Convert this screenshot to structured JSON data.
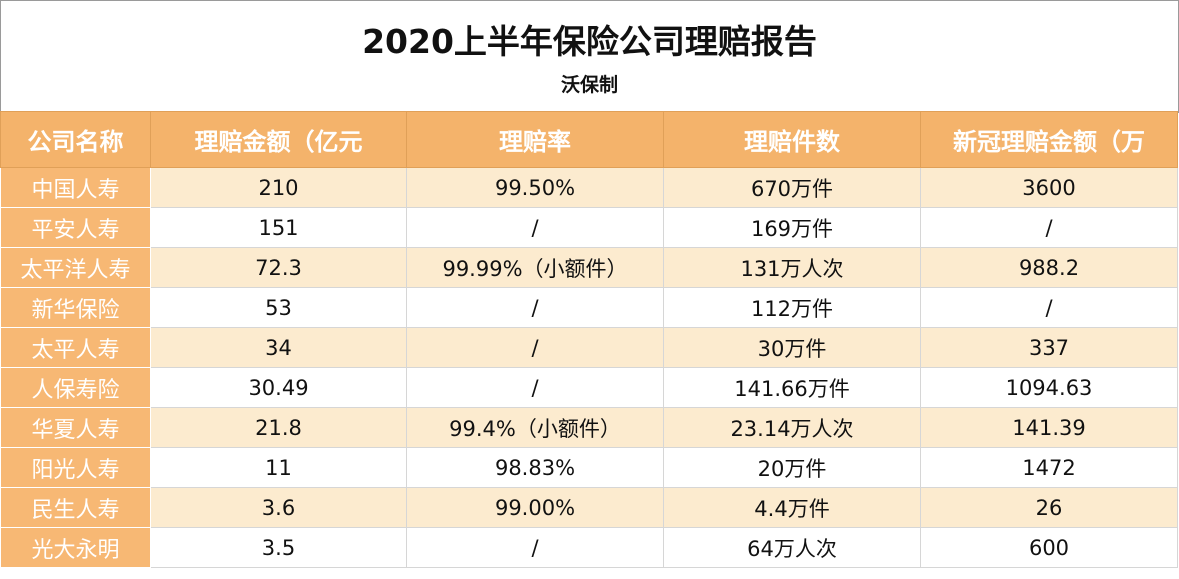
{
  "title": "2020上半年保险公司理赔报告",
  "subtitle": "沃保制",
  "table": {
    "headers": [
      "公司名称",
      "理赔金额（亿元",
      "理赔率",
      "理赔件数",
      "新冠理赔金额（万"
    ],
    "rows": [
      [
        "中国人寿",
        "210",
        "99.50%",
        "670万件",
        "3600"
      ],
      [
        "平安人寿",
        "151",
        "/",
        "169万件",
        "/"
      ],
      [
        "太平洋人寿",
        "72.3",
        "99.99%（小额件）",
        "131万人次",
        "988.2"
      ],
      [
        "新华保险",
        "53",
        "/",
        "112万件",
        "/"
      ],
      [
        "太平人寿",
        "34",
        "/",
        "30万件",
        "337"
      ],
      [
        "人保寿险",
        "30.49",
        "/",
        "141.66万件",
        "1094.63"
      ],
      [
        "华夏人寿",
        "21.8",
        "99.4%（小额件）",
        "23.14万人次",
        "141.39"
      ],
      [
        "阳光人寿",
        "11",
        "98.83%",
        "20万件",
        "1472"
      ],
      [
        "民生人寿",
        "3.6",
        "99.00%",
        "4.4万件",
        "26"
      ],
      [
        "光大永明",
        "3.5",
        "/",
        "64万人次",
        "600"
      ]
    ]
  },
  "colors": {
    "header_bg": "#f4b36b",
    "name_col_bg": "#f7b874",
    "stripe_bg": "#fcebcf"
  }
}
